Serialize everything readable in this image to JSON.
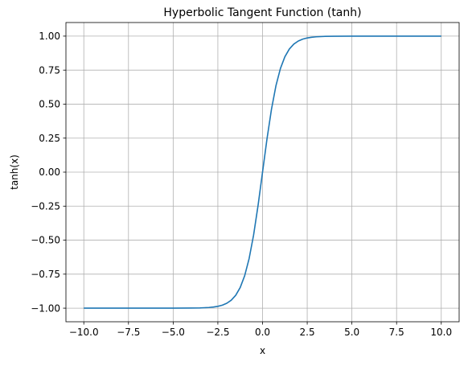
{
  "chart_data": {
    "type": "line",
    "title": "Hyperbolic Tangent Function (tanh)",
    "xlabel": "x",
    "ylabel": "tanh(x)",
    "xlim": [
      -11.0,
      11.0
    ],
    "ylim": [
      -1.1,
      1.1
    ],
    "xticks": [
      -10.0,
      -7.5,
      -5.0,
      -2.5,
      0.0,
      2.5,
      5.0,
      7.5,
      10.0
    ],
    "xtick_labels": [
      "−10.0",
      "−7.5",
      "−5.0",
      "−2.5",
      "0.0",
      "2.5",
      "5.0",
      "7.5",
      "10.0"
    ],
    "yticks": [
      -1.0,
      -0.75,
      -0.5,
      -0.25,
      0.0,
      0.25,
      0.5,
      0.75,
      1.0
    ],
    "ytick_labels": [
      "−1.00",
      "−0.75",
      "−0.50",
      "−0.25",
      "0.00",
      "0.25",
      "0.50",
      "0.75",
      "1.00"
    ],
    "grid": true,
    "series": [
      {
        "color": "#1f77b4",
        "x": [
          -10.0,
          -5.0,
          -4.0,
          -3.5,
          -3.0,
          -2.75,
          -2.5,
          -2.25,
          -2.0,
          -1.75,
          -1.5,
          -1.25,
          -1.0,
          -0.75,
          -0.5,
          -0.25,
          0.0,
          0.25,
          0.5,
          0.75,
          1.0,
          1.25,
          1.5,
          1.75,
          2.0,
          2.25,
          2.5,
          2.75,
          3.0,
          3.5,
          4.0,
          5.0,
          10.0
        ],
        "y": [
          -1.0,
          -0.9999,
          -0.9993,
          -0.9982,
          -0.9951,
          -0.9919,
          -0.9866,
          -0.978,
          -0.964,
          -0.9414,
          -0.9051,
          -0.8483,
          -0.7616,
          -0.6351,
          -0.4621,
          -0.2449,
          0.0,
          0.2449,
          0.4621,
          0.6351,
          0.7616,
          0.8483,
          0.9051,
          0.9414,
          0.964,
          0.978,
          0.9866,
          0.9919,
          0.9951,
          0.9982,
          0.9993,
          0.9999,
          1.0
        ]
      }
    ]
  }
}
